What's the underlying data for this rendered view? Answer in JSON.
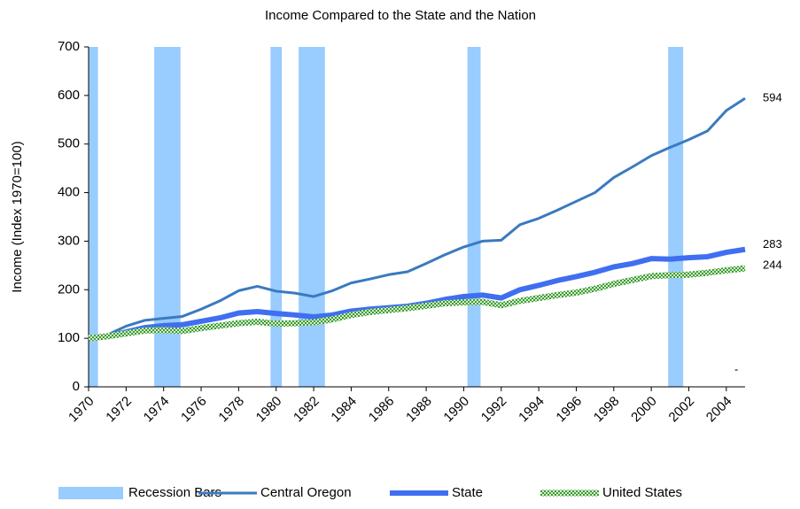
{
  "chart_data": {
    "type": "line",
    "title": "Income Compared to the State and the Nation",
    "y_label": "Income (Index 1970=100)",
    "x": [
      1970,
      1971,
      1972,
      1973,
      1974,
      1975,
      1976,
      1977,
      1978,
      1979,
      1980,
      1981,
      1982,
      1983,
      1984,
      1985,
      1986,
      1987,
      1988,
      1989,
      1990,
      1991,
      1992,
      1993,
      1994,
      1995,
      1996,
      1997,
      1998,
      1999,
      2000,
      2001,
      2002,
      2003,
      2004,
      2005
    ],
    "recessions": {
      "name": "Recession Bars",
      "color": "#99ccff",
      "value": 700,
      "starts": [
        1970,
        1973.5,
        1979.7,
        1981.2,
        1990.2,
        2000.9
      ],
      "ends": [
        1970.5,
        1974.9,
        1980.3,
        1982.6,
        1990.9,
        2001.7
      ]
    },
    "series": [
      {
        "name": "Central Oregon",
        "color": "#3a7abf",
        "width": 3,
        "values": [
          100,
          107,
          125,
          137,
          141,
          145,
          160,
          177,
          198,
          207,
          197,
          193,
          186,
          198,
          214,
          222,
          231,
          237,
          254,
          272,
          288,
          300,
          302,
          334,
          347,
          364,
          382,
          400,
          431,
          453,
          476,
          493,
          509,
          527,
          569,
          594
        ]
      },
      {
        "name": "State",
        "color": "#3f6ff0",
        "width": 6,
        "values": [
          100,
          104,
          113,
          122,
          126,
          128,
          135,
          142,
          152,
          155,
          151,
          148,
          144,
          148,
          156,
          160,
          163,
          166,
          172,
          180,
          186,
          189,
          183,
          200,
          209,
          219,
          227,
          236,
          247,
          254,
          264,
          263,
          266,
          268,
          277,
          283
        ]
      },
      {
        "name": "United States",
        "color": "#66bb44",
        "width": 7,
        "pattern": true,
        "values": [
          100,
          104,
          110,
          116,
          117,
          115,
          121,
          126,
          131,
          134,
          130,
          131,
          133,
          139,
          148,
          154,
          158,
          162,
          167,
          172,
          174,
          175,
          168,
          177,
          183,
          189,
          194,
          202,
          212,
          220,
          228,
          230,
          231,
          235,
          240,
          244
        ]
      }
    ],
    "annotation": "-",
    "xlim": [
      1970,
      2005
    ],
    "xticks": [
      1970,
      1972,
      1974,
      1976,
      1978,
      1980,
      1982,
      1984,
      1986,
      1988,
      1990,
      1992,
      1994,
      1996,
      1998,
      2000,
      2002,
      2004
    ],
    "ylim": [
      0,
      700
    ],
    "yticks": [
      0,
      100,
      200,
      300,
      400,
      500,
      600,
      700
    ]
  }
}
